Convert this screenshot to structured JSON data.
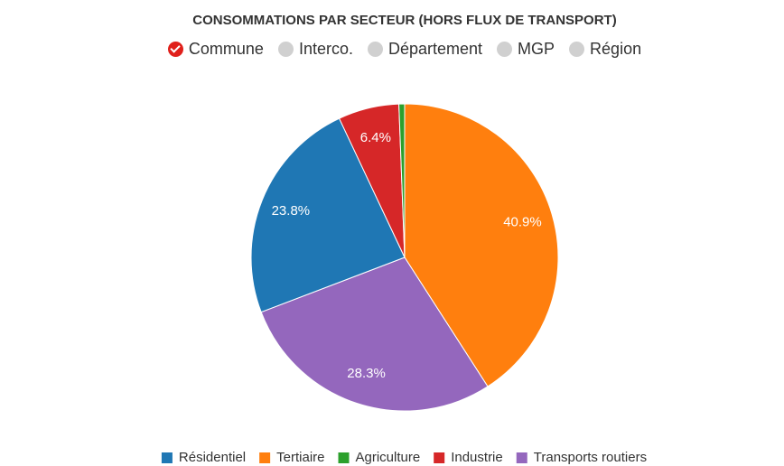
{
  "header": {
    "title": "CONSOMMATIONS PAR SECTEUR (HORS FLUX DE TRANSPORT)",
    "options": [
      {
        "label": "Commune",
        "checked": true
      },
      {
        "label": "Interco.",
        "checked": false
      },
      {
        "label": "Département",
        "checked": false
      },
      {
        "label": "MGP",
        "checked": false
      },
      {
        "label": "Région",
        "checked": false
      }
    ]
  },
  "chart_data": {
    "type": "pie",
    "categories": [
      "Tertiaire",
      "Transports routiers",
      "Résidentiel",
      "Industrie",
      "Agriculture"
    ],
    "values": [
      40.9,
      28.3,
      23.8,
      6.4,
      0.6
    ],
    "value_labels": [
      "40.9%",
      "28.3%",
      "23.8%",
      "6.4%",
      null
    ],
    "colors": [
      "#ff7f0e",
      "#9467bd",
      "#1f77b4",
      "#d62728",
      "#2ca02c"
    ],
    "legend": [
      {
        "name": "Résidentiel",
        "color": "#1f77b4"
      },
      {
        "name": "Tertiaire",
        "color": "#ff7f0e"
      },
      {
        "name": "Agriculture",
        "color": "#2ca02c"
      },
      {
        "name": "Industrie",
        "color": "#d62728"
      },
      {
        "name": "Transports routiers",
        "color": "#9467bd"
      }
    ]
  }
}
